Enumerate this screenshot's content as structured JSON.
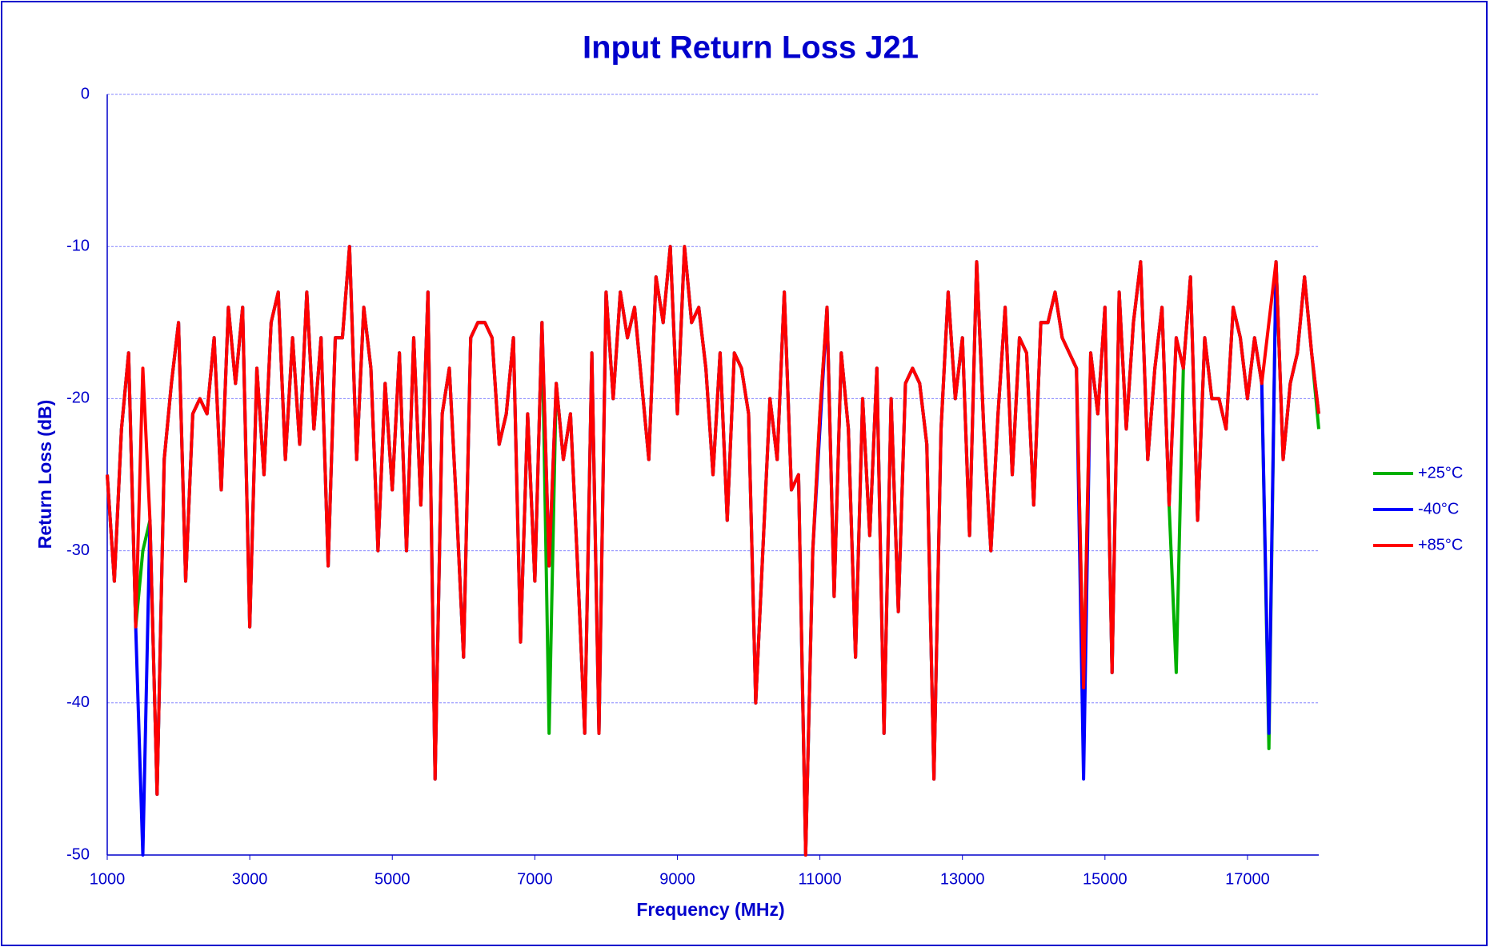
{
  "chart_data": {
    "type": "line",
    "title": "Input Return Loss J21",
    "x_label": "Frequency (MHz)",
    "y_label": "Return Loss (dB)",
    "xlim": [
      1000,
      18000
    ],
    "xticks": [
      1000,
      3000,
      5000,
      7000,
      9000,
      11000,
      13000,
      15000,
      17000
    ],
    "ylim": [
      -50,
      0
    ],
    "yticks": [
      0,
      -10,
      -20,
      -30,
      -40,
      -50
    ],
    "grid": true,
    "legend": "right",
    "x": [
      1000,
      1100,
      1200,
      1300,
      1400,
      1500,
      1600,
      1700,
      1800,
      1900,
      2000,
      2100,
      2200,
      2300,
      2400,
      2500,
      2600,
      2700,
      2800,
      2900,
      3000,
      3100,
      3200,
      3300,
      3400,
      3500,
      3600,
      3700,
      3800,
      3900,
      4000,
      4100,
      4200,
      4300,
      4400,
      4500,
      4600,
      4700,
      4800,
      4900,
      5000,
      5100,
      5200,
      5300,
      5400,
      5500,
      5600,
      5700,
      5800,
      5900,
      6000,
      6100,
      6200,
      6300,
      6400,
      6500,
      6600,
      6700,
      6800,
      6900,
      7000,
      7100,
      7200,
      7300,
      7400,
      7500,
      7600,
      7700,
      7800,
      7900,
      8000,
      8100,
      8200,
      8300,
      8400,
      8500,
      8600,
      8700,
      8800,
      8900,
      9000,
      9100,
      9200,
      9300,
      9400,
      9500,
      9600,
      9700,
      9800,
      9900,
      10000,
      10100,
      10200,
      10300,
      10400,
      10500,
      10600,
      10700,
      10800,
      10900,
      11000,
      11100,
      11200,
      11300,
      11400,
      11500,
      11600,
      11700,
      11800,
      11900,
      12000,
      12100,
      12200,
      12300,
      12400,
      12500,
      12600,
      12700,
      12800,
      12900,
      13000,
      13100,
      13200,
      13300,
      13400,
      13500,
      13600,
      13700,
      13800,
      13900,
      14000,
      14100,
      14200,
      14300,
      14400,
      14500,
      14600,
      14700,
      14800,
      14900,
      15000,
      15100,
      15200,
      15300,
      15400,
      15500,
      15600,
      15700,
      15800,
      15900,
      16000,
      16100,
      16200,
      16300,
      16400,
      16500,
      16600,
      16700,
      16800,
      16900,
      17000,
      17100,
      17200,
      17300,
      17400,
      17500,
      17600,
      17700,
      17800,
      17900,
      18000
    ],
    "series": [
      {
        "name": "+25°C",
        "color": "#00b000",
        "values": [
          -25,
          -32,
          -22,
          -17,
          -35,
          -30,
          -28,
          -46,
          -24,
          -19,
          -15,
          -32,
          -21,
          -20,
          -21,
          -16,
          -26,
          -14,
          -19,
          -14,
          -35,
          -18,
          -25,
          -15,
          -13,
          -24,
          -16,
          -23,
          -13,
          -22,
          -16,
          -31,
          -16,
          -16,
          -10,
          -24,
          -14,
          -18,
          -30,
          -19,
          -26,
          -17,
          -30,
          -16,
          -27,
          -13,
          -45,
          -21,
          -18,
          -27,
          -37,
          -16,
          -15,
          -15,
          -16,
          -23,
          -21,
          -16,
          -36,
          -21,
          -32,
          -15,
          -42,
          -19,
          -24,
          -21,
          -31,
          -42,
          -17,
          -42,
          -13,
          -20,
          -13,
          -16,
          -14,
          -19,
          -24,
          -12,
          -15,
          -10,
          -21,
          -10,
          -15,
          -14,
          -18,
          -25,
          -17,
          -28,
          -17,
          -18,
          -21,
          -40,
          -30,
          -20,
          -24,
          -13,
          -26,
          -25,
          -50,
          -30,
          -21,
          -14,
          -33,
          -17,
          -22,
          -37,
          -20,
          -29,
          -18,
          -42,
          -20,
          -34,
          -19,
          -18,
          -19,
          -23,
          -45,
          -22,
          -13,
          -20,
          -16,
          -29,
          -11,
          -22,
          -30,
          -21,
          -14,
          -25,
          -16,
          -17,
          -27,
          -15,
          -15,
          -13,
          -16,
          -17,
          -18,
          -39,
          -17,
          -21,
          -14,
          -38,
          -13,
          -22,
          -15,
          -11,
          -24,
          -18,
          -14,
          -27,
          -38,
          -18,
          -12,
          -28,
          -16,
          -20,
          -20,
          -22,
          -14,
          -16,
          -20,
          -16,
          -19,
          -43,
          -11,
          -24,
          -19,
          -17,
          -12,
          -17,
          -22
        ]
      },
      {
        "name": "-40°C",
        "color": "#0000ff",
        "values": [
          -25,
          -32,
          -22,
          -17,
          -35,
          -50,
          -28,
          -46,
          -24,
          -19,
          -15,
          -32,
          -21,
          -20,
          -21,
          -16,
          -26,
          -14,
          -19,
          -14,
          -35,
          -18,
          -25,
          -15,
          -13,
          -24,
          -16,
          -23,
          -13,
          -22,
          -16,
          -31,
          -16,
          -16,
          -10,
          -24,
          -14,
          -18,
          -30,
          -19,
          -26,
          -17,
          -30,
          -16,
          -27,
          -13,
          -45,
          -21,
          -18,
          -27,
          -37,
          -16,
          -15,
          -15,
          -16,
          -23,
          -21,
          -16,
          -36,
          -21,
          -32,
          -15,
          -31,
          -19,
          -24,
          -21,
          -31,
          -42,
          -17,
          -42,
          -13,
          -20,
          -13,
          -16,
          -14,
          -19,
          -24,
          -12,
          -15,
          -10,
          -21,
          -10,
          -15,
          -14,
          -18,
          -25,
          -17,
          -28,
          -17,
          -18,
          -21,
          -40,
          -30,
          -20,
          -24,
          -13,
          -26,
          -25,
          -50,
          -30,
          -22,
          -14,
          -33,
          -17,
          -22,
          -37,
          -20,
          -29,
          -18,
          -42,
          -20,
          -34,
          -19,
          -18,
          -19,
          -23,
          -45,
          -22,
          -13,
          -20,
          -16,
          -29,
          -11,
          -22,
          -30,
          -21,
          -14,
          -25,
          -16,
          -17,
          -27,
          -15,
          -15,
          -13,
          -16,
          -17,
          -18,
          -45,
          -17,
          -21,
          -14,
          -38,
          -13,
          -22,
          -15,
          -11,
          -24,
          -18,
          -14,
          -27,
          -16,
          -18,
          -12,
          -28,
          -16,
          -20,
          -20,
          -22,
          -14,
          -16,
          -20,
          -16,
          -19,
          -42,
          -11,
          -24,
          -19,
          -17,
          -12,
          -17,
          -21
        ]
      },
      {
        "name": "+85°C",
        "color": "#ff0000",
        "values": [
          -25,
          -32,
          -22,
          -17,
          -35,
          -18,
          -28,
          -46,
          -24,
          -19,
          -15,
          -32,
          -21,
          -20,
          -21,
          -16,
          -26,
          -14,
          -19,
          -14,
          -35,
          -18,
          -25,
          -15,
          -13,
          -24,
          -16,
          -23,
          -13,
          -22,
          -16,
          -31,
          -16,
          -16,
          -10,
          -24,
          -14,
          -18,
          -30,
          -19,
          -26,
          -17,
          -30,
          -16,
          -27,
          -13,
          -45,
          -21,
          -18,
          -27,
          -37,
          -16,
          -15,
          -15,
          -16,
          -23,
          -21,
          -16,
          -36,
          -21,
          -32,
          -15,
          -31,
          -19,
          -24,
          -21,
          -31,
          -42,
          -17,
          -42,
          -13,
          -20,
          -13,
          -16,
          -14,
          -19,
          -24,
          -12,
          -15,
          -10,
          -21,
          -10,
          -15,
          -14,
          -18,
          -25,
          -17,
          -28,
          -17,
          -18,
          -21,
          -40,
          -30,
          -20,
          -24,
          -13,
          -26,
          -25,
          -50,
          -30,
          -21,
          -14,
          -33,
          -17,
          -22,
          -37,
          -20,
          -29,
          -18,
          -42,
          -20,
          -34,
          -19,
          -18,
          -19,
          -23,
          -45,
          -22,
          -13,
          -20,
          -16,
          -29,
          -11,
          -22,
          -30,
          -21,
          -14,
          -25,
          -16,
          -17,
          -27,
          -15,
          -15,
          -13,
          -16,
          -17,
          -18,
          -39,
          -17,
          -21,
          -14,
          -38,
          -13,
          -22,
          -15,
          -11,
          -24,
          -18,
          -14,
          -27,
          -16,
          -18,
          -12,
          -28,
          -16,
          -20,
          -20,
          -22,
          -14,
          -16,
          -20,
          -16,
          -19,
          -15,
          -11,
          -24,
          -19,
          -17,
          -12,
          -17,
          -21
        ]
      }
    ]
  }
}
